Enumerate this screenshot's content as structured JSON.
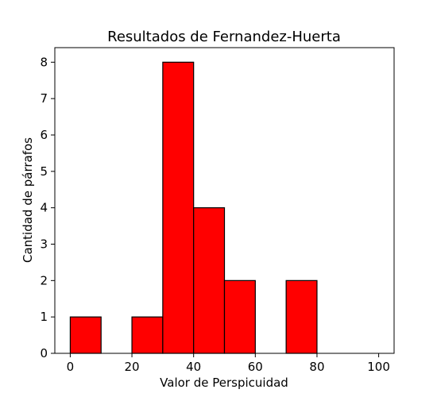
{
  "chart_data": {
    "type": "bar",
    "title": "Resultados de Fernandez-Huerta",
    "xlabel": "Valor de Perspicuidad",
    "ylabel": "Cantidad de párrafos",
    "bins": [
      {
        "x0": 0,
        "x1": 10,
        "count": 1
      },
      {
        "x0": 10,
        "x1": 20,
        "count": 0
      },
      {
        "x0": 20,
        "x1": 30,
        "count": 1
      },
      {
        "x0": 30,
        "x1": 40,
        "count": 8
      },
      {
        "x0": 40,
        "x1": 50,
        "count": 4
      },
      {
        "x0": 50,
        "x1": 60,
        "count": 2
      },
      {
        "x0": 60,
        "x1": 70,
        "count": 0
      },
      {
        "x0": 70,
        "x1": 80,
        "count": 2
      },
      {
        "x0": 80,
        "x1": 90,
        "count": 0
      },
      {
        "x0": 90,
        "x1": 100,
        "count": 0
      }
    ],
    "xlim": [
      -5,
      105
    ],
    "ylim": [
      0,
      8.4
    ],
    "xticks": [
      0,
      20,
      40,
      60,
      80,
      100
    ],
    "yticks": [
      0,
      1,
      2,
      3,
      4,
      5,
      6,
      7,
      8
    ],
    "bar_color": "#ff0000",
    "edge_color": "#000000",
    "grid": false,
    "legend": "none"
  }
}
